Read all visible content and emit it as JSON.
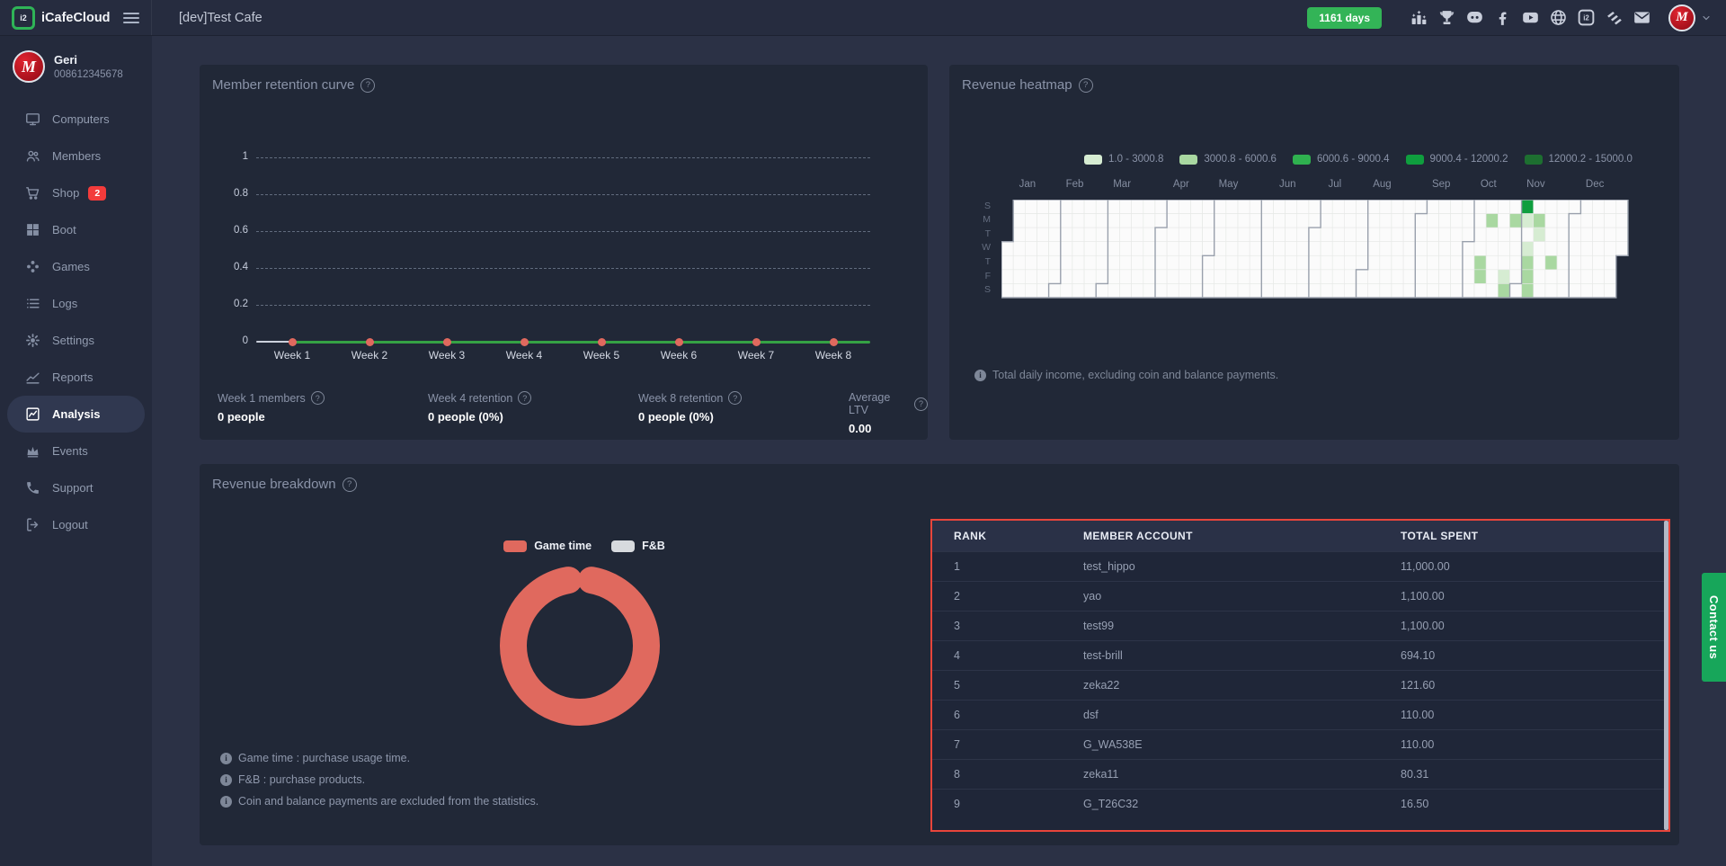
{
  "topbar": {
    "brand": "iCafeCloud",
    "logo_text": "i2",
    "title": "[dev]Test Cafe",
    "days_badge": "1161 days",
    "icons": [
      "ranking",
      "trophy",
      "discord",
      "facebook",
      "youtube",
      "globe",
      "icafe",
      "layers",
      "mail"
    ]
  },
  "sidebar": {
    "user": {
      "name": "Geri",
      "phone": "008612345678",
      "avatar_letter": "M"
    },
    "items": [
      {
        "label": "Computers",
        "icon": "monitor"
      },
      {
        "label": "Members",
        "icon": "users"
      },
      {
        "label": "Shop",
        "icon": "cart",
        "badge": "2"
      },
      {
        "label": "Boot",
        "icon": "windows"
      },
      {
        "label": "Games",
        "icon": "gamepad"
      },
      {
        "label": "Logs",
        "icon": "list"
      },
      {
        "label": "Settings",
        "icon": "gear"
      },
      {
        "label": "Reports",
        "icon": "chart-line"
      },
      {
        "label": "Analysis",
        "icon": "chart-analysis",
        "active": true
      },
      {
        "label": "Events",
        "icon": "crown"
      },
      {
        "label": "Support",
        "icon": "phone"
      },
      {
        "label": "Logout",
        "icon": "logout"
      }
    ]
  },
  "retention": {
    "title": "Member retention curve",
    "chart_data": {
      "type": "line",
      "categories": [
        "Week 1",
        "Week 2",
        "Week 3",
        "Week 4",
        "Week 5",
        "Week 6",
        "Week 7",
        "Week 8"
      ],
      "values": [
        0,
        0,
        0,
        0,
        0,
        0,
        0,
        0
      ],
      "yticks": [
        1,
        0.8,
        0.6,
        0.4,
        0.2,
        0
      ],
      "ylim": [
        0,
        1
      ],
      "grid": "dashed",
      "line_color": "#35a244",
      "point_color": "#e0695e"
    },
    "stats": [
      {
        "label": "Week 1 members",
        "value": "0 people"
      },
      {
        "label": "Week 4 retention",
        "value": "0 people (0%)"
      },
      {
        "label": "Week 8 retention",
        "value": "0 people (0%)"
      },
      {
        "label": "Average LTV",
        "value": "0.00"
      }
    ]
  },
  "heatmap": {
    "title": "Revenue heatmap",
    "note": "Total daily income, excluding coin and balance payments.",
    "chart_data": {
      "type": "heatmap",
      "legend": [
        {
          "label": "1.0 - 3000.8",
          "color": "#d6ecd2"
        },
        {
          "label": "3000.8 - 6000.6",
          "color": "#a9d8a1"
        },
        {
          "label": "6000.6 - 9000.4",
          "color": "#2fb14f"
        },
        {
          "label": "9000.4 - 12000.2",
          "color": "#0f9e3e"
        },
        {
          "label": "12000.2 - 15000.0",
          "color": "#1d6f30"
        }
      ],
      "day_labels": [
        "S",
        "M",
        "T",
        "W",
        "T",
        "F",
        "S"
      ],
      "months": [
        {
          "label": "Jan",
          "col": 0,
          "weekday": 3
        },
        {
          "label": "Feb",
          "col": 4,
          "weekday": 6
        },
        {
          "label": "Mar",
          "col": 8,
          "weekday": 6
        },
        {
          "label": "Apr",
          "col": 13,
          "weekday": 2
        },
        {
          "label": "May",
          "col": 17,
          "weekday": 4
        },
        {
          "label": "Jun",
          "col": 22,
          "weekday": 0
        },
        {
          "label": "Jul",
          "col": 26,
          "weekday": 2
        },
        {
          "label": "Aug",
          "col": 30,
          "weekday": 5
        },
        {
          "label": "Sep",
          "col": 35,
          "weekday": 1
        },
        {
          "label": "Oct",
          "col": 39,
          "weekday": 3
        },
        {
          "label": "Nov",
          "col": 43,
          "weekday": 6
        },
        {
          "label": "Dec",
          "col": 48,
          "weekday": 1
        }
      ],
      "weeks": 53,
      "start_offset": 3,
      "end_offset": 3,
      "cells": [
        {
          "col": 44,
          "row": 0,
          "level": 3
        },
        {
          "col": 41,
          "row": 1,
          "level": 1
        },
        {
          "col": 43,
          "row": 1,
          "level": 1
        },
        {
          "col": 44,
          "row": 1,
          "level": 0
        },
        {
          "col": 45,
          "row": 1,
          "level": 1
        },
        {
          "col": 45,
          "row": 2,
          "level": 0
        },
        {
          "col": 44,
          "row": 3,
          "level": 0
        },
        {
          "col": 40,
          "row": 4,
          "level": 1
        },
        {
          "col": 44,
          "row": 4,
          "level": 1
        },
        {
          "col": 46,
          "row": 4,
          "level": 1
        },
        {
          "col": 40,
          "row": 5,
          "level": 1
        },
        {
          "col": 42,
          "row": 5,
          "level": 0
        },
        {
          "col": 44,
          "row": 5,
          "level": 1
        },
        {
          "col": 42,
          "row": 6,
          "level": 1
        },
        {
          "col": 44,
          "row": 6,
          "level": 1
        }
      ]
    }
  },
  "breakdown": {
    "title": "Revenue breakdown",
    "chart_data": {
      "type": "pie",
      "labels": [
        "Game time",
        "F&B"
      ],
      "values_pct": [
        99.5,
        0.5
      ],
      "colors": [
        "#e0695e",
        "#d7dade"
      ]
    },
    "notes": [
      "Game time : purchase usage time.",
      "F&B : purchase products.",
      "Coin and balance payments are excluded from the statistics."
    ]
  },
  "table": {
    "columns": [
      "RANK",
      "MEMBER ACCOUNT",
      "TOTAL SPENT"
    ],
    "rows": [
      {
        "rank": "1",
        "account": "test_hippo",
        "spent": "11,000.00"
      },
      {
        "rank": "2",
        "account": "yao",
        "spent": "1,100.00"
      },
      {
        "rank": "3",
        "account": "test99",
        "spent": "1,100.00"
      },
      {
        "rank": "4",
        "account": "test-brill",
        "spent": "694.10"
      },
      {
        "rank": "5",
        "account": "zeka22",
        "spent": "121.60"
      },
      {
        "rank": "6",
        "account": "dsf",
        "spent": "110.00"
      },
      {
        "rank": "7",
        "account": "G_WA538E",
        "spent": "110.00"
      },
      {
        "rank": "8",
        "account": "zeka11",
        "spent": "80.31"
      },
      {
        "rank": "9",
        "account": "G_T26C32",
        "spent": "16.50"
      }
    ]
  },
  "contact": {
    "label": "Contact us"
  }
}
